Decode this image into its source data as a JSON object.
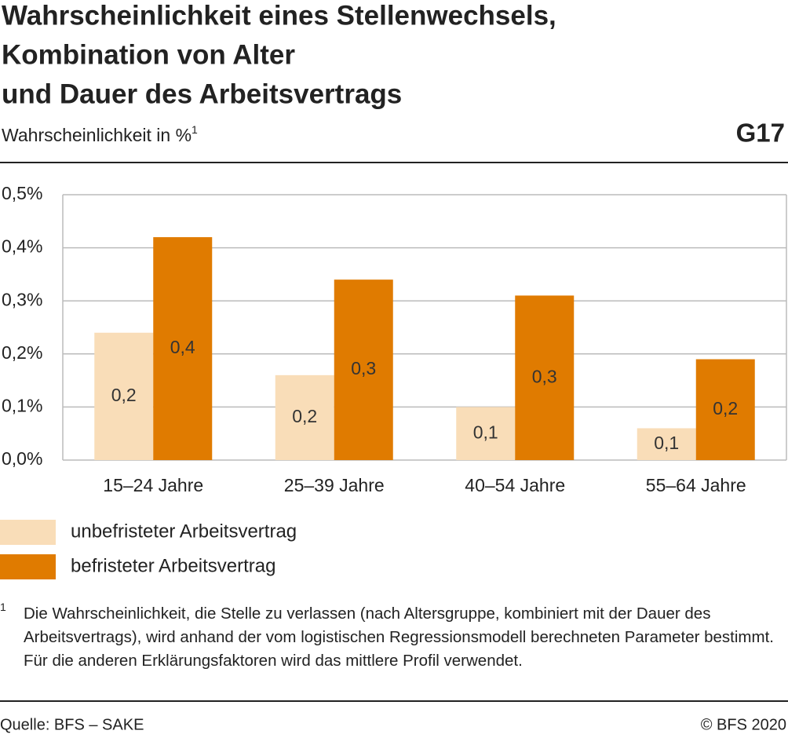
{
  "chart_data": {
    "type": "bar",
    "title": [
      "Wahrscheinlichkeit eines Stellenwechsels,",
      "Kombination von Alter",
      "und Dauer des Arbeitsvertrags"
    ],
    "subtitle": "Wahrscheinlichkeit in %",
    "subtitle_footnote_mark": "1",
    "chart_id": "G17",
    "categories": [
      "15–24 Jahre",
      "25–39 Jahre",
      "40–54 Jahre",
      "55–64 Jahre"
    ],
    "series": [
      {
        "name": "unbefristeter Arbeitsvertrag",
        "color": "#f9ddb8",
        "values": [
          0.24,
          0.16,
          0.1,
          0.06
        ],
        "value_labels": [
          "0,2",
          "0,2",
          "0,1",
          "0,1"
        ]
      },
      {
        "name": "befristeter Arbeitsvertrag",
        "color": "#e07b00",
        "values": [
          0.42,
          0.34,
          0.31,
          0.19
        ],
        "value_labels": [
          "0,4",
          "0,3",
          "0,3",
          "0,2"
        ]
      }
    ],
    "ylim": [
      0,
      0.5
    ],
    "yticks": [
      {
        "value": 0,
        "label": "0,0%"
      },
      {
        "value": 0.1,
        "label": "0,1%"
      },
      {
        "value": 0.2,
        "label": "0,2%"
      },
      {
        "value": 0.3,
        "label": "0,3%"
      },
      {
        "value": 0.4,
        "label": "0,4%"
      },
      {
        "value": 0.5,
        "label": "0,5%"
      }
    ],
    "grid": true,
    "footnote": {
      "mark": "1",
      "text": "Die Wahrscheinlichkeit, die Stelle zu verlassen (nach Altersgruppe, kombiniert mit der Dauer des Arbeitsvertrags), wird anhand der vom logistischen Regressionsmodell berechneten Parameter bestimmt. Für die anderen Erklärungsfaktoren wird das mittlere Profil verwendet."
    },
    "source": "Quelle: BFS – SAKE",
    "copyright": "© BFS 2020"
  }
}
